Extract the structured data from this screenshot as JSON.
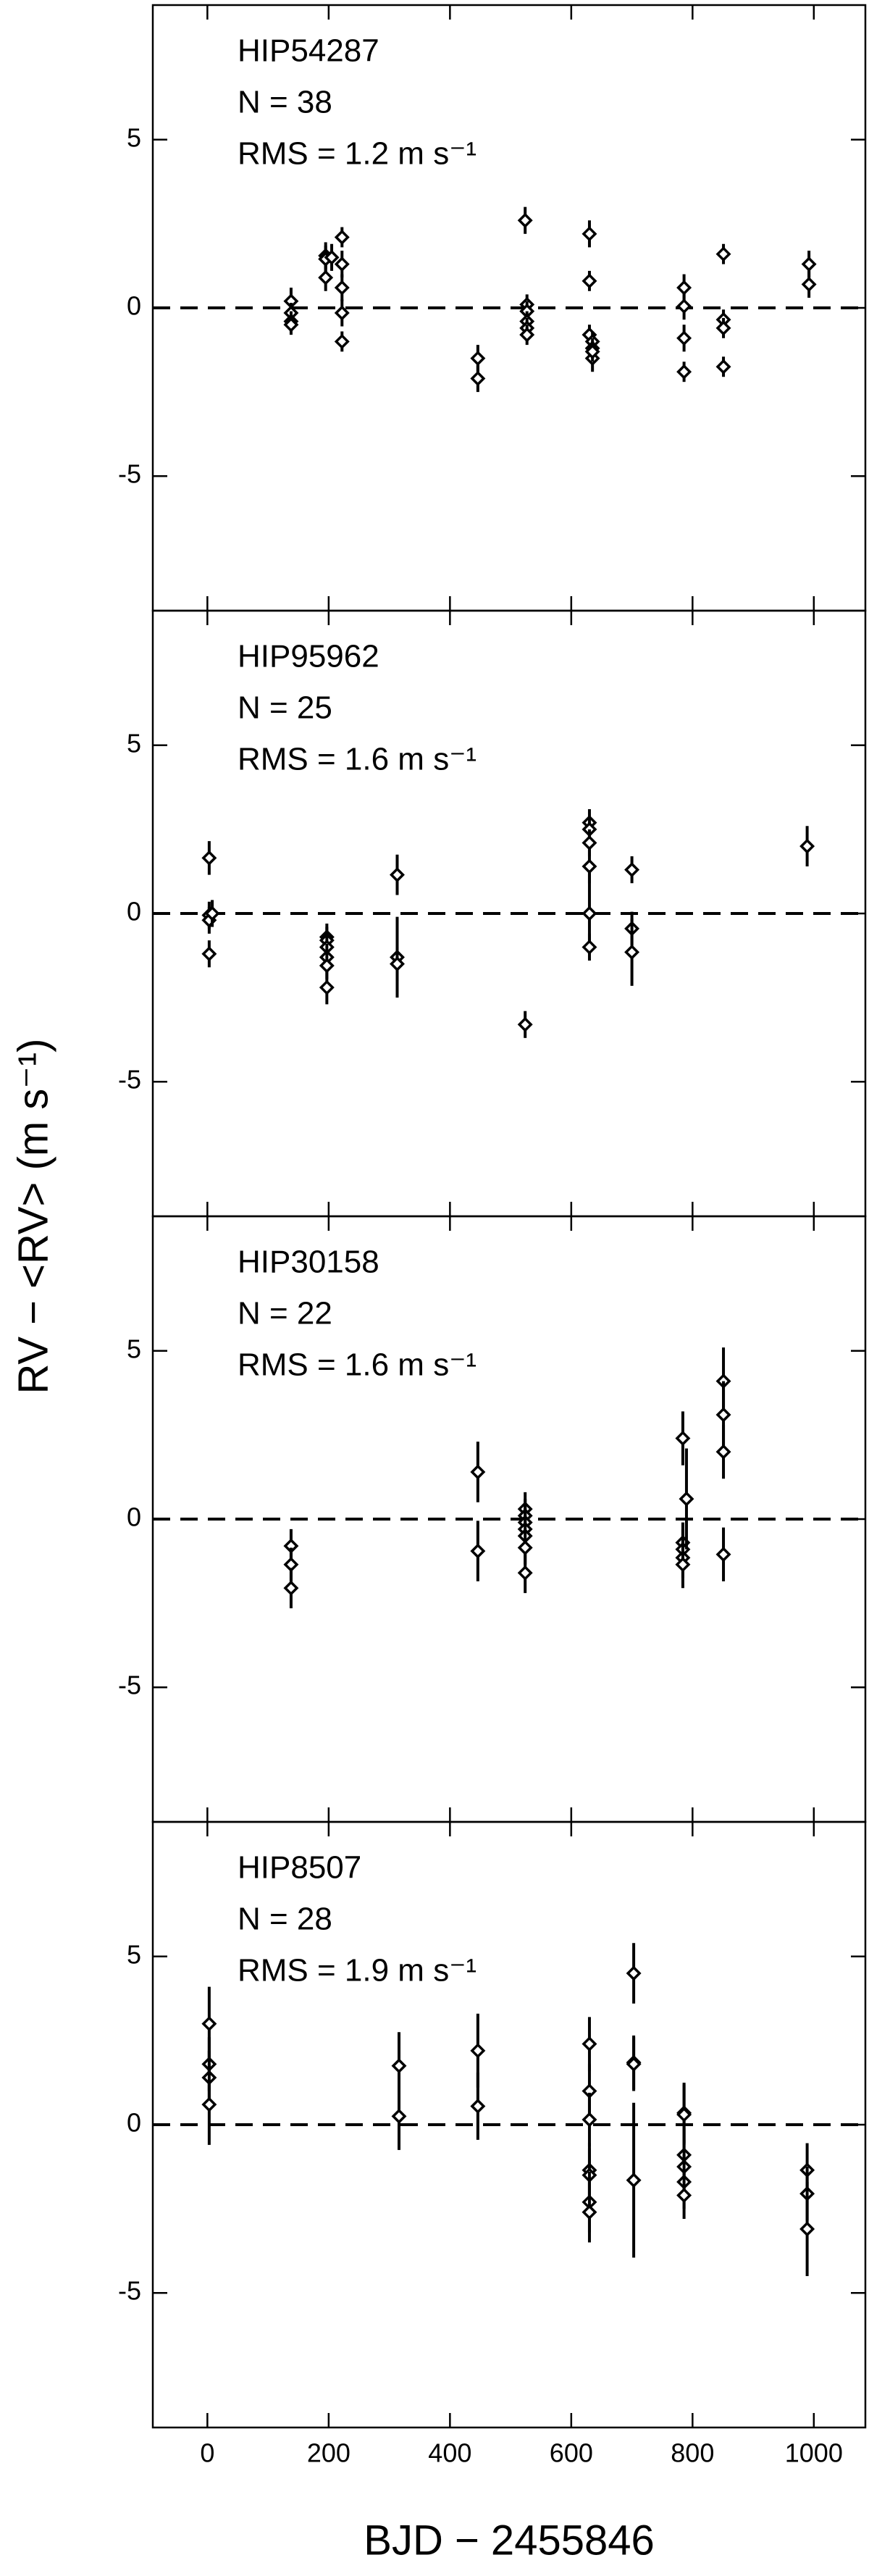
{
  "chart_data": [
    {
      "type": "scatter",
      "annotations": [
        "HIP54287",
        "N = 38",
        "RMS = 1.2 m s⁻¹"
      ],
      "ylabel": "RV − <RV> (m s⁻¹)",
      "x": [
        138,
        138,
        138,
        138,
        195,
        195,
        195,
        205,
        222,
        222,
        222,
        222,
        222,
        446,
        446,
        524,
        527,
        527,
        527,
        527,
        527,
        630,
        630,
        630,
        635,
        635,
        635,
        635,
        786,
        786,
        786,
        786,
        851,
        851,
        851,
        851,
        992,
        992
      ],
      "values": [
        0.2,
        -0.15,
        -0.4,
        -0.5,
        1.55,
        1.45,
        0.9,
        1.5,
        2.1,
        1.3,
        0.6,
        -0.15,
        -1.0,
        -1.5,
        -2.1,
        2.6,
        0.1,
        -0.1,
        -0.4,
        -0.6,
        -0.8,
        2.2,
        0.8,
        -0.8,
        -1.0,
        -1.2,
        -1.5,
        -1.3,
        0.6,
        0.05,
        -0.9,
        -1.9,
        1.6,
        -0.35,
        -0.6,
        -1.75,
        1.3,
        0.7
      ],
      "errors": [
        0.4,
        0.3,
        0.3,
        0.3,
        0.4,
        0.4,
        0.4,
        0.4,
        0.3,
        0.4,
        0.4,
        0.4,
        0.3,
        0.4,
        0.4,
        0.4,
        0.3,
        0.3,
        0.3,
        0.3,
        0.3,
        0.4,
        0.3,
        0.3,
        0.3,
        0.3,
        0.4,
        0.3,
        0.4,
        0.4,
        0.4,
        0.3,
        0.3,
        0.3,
        0.3,
        0.3,
        0.4,
        0.4
      ],
      "color": "#000000",
      "hline": 0,
      "xlim": [
        -90,
        1085
      ],
      "xticks": [
        0,
        200,
        400,
        600,
        800,
        1000
      ],
      "ylim": [
        -9,
        9
      ],
      "yticks": [
        -5,
        0,
        5
      ]
    },
    {
      "type": "scatter",
      "annotations": [
        "HIP95962",
        "N = 25",
        "RMS = 1.6 m s⁻¹"
      ],
      "x": [
        3,
        3,
        3,
        3,
        8,
        197,
        197,
        197,
        197,
        197,
        197,
        313,
        313,
        313,
        524,
        630,
        630,
        630,
        630,
        630,
        630,
        700,
        700,
        700,
        989
      ],
      "values": [
        1.65,
        -0.05,
        -0.2,
        -1.2,
        0.0,
        -0.7,
        -0.8,
        -1.0,
        -1.3,
        -1.55,
        -2.2,
        1.15,
        -1.3,
        -1.5,
        -3.3,
        2.7,
        2.5,
        2.1,
        1.4,
        0.0,
        -1.0,
        1.3,
        -0.45,
        -1.15,
        2.0
      ],
      "errors": [
        0.5,
        0.4,
        0.4,
        0.4,
        0.4,
        0.4,
        0.4,
        0.4,
        0.4,
        0.4,
        0.5,
        0.6,
        1.2,
        0.5,
        0.4,
        0.4,
        0.4,
        0.4,
        0.5,
        1.2,
        0.4,
        0.4,
        0.5,
        1.0,
        0.6
      ],
      "color": "#000000",
      "hline": 0,
      "xlim": [
        -90,
        1085
      ],
      "xticks": [
        0,
        200,
        400,
        600,
        800,
        1000
      ],
      "ylim": [
        -9,
        9
      ],
      "yticks": [
        -5,
        0,
        5
      ]
    },
    {
      "type": "scatter",
      "annotations": [
        "HIP30158",
        "N = 22",
        "RMS = 1.6 m s⁻¹"
      ],
      "x": [
        138,
        138,
        138,
        446,
        446,
        524,
        524,
        524,
        524,
        524,
        524,
        524,
        784,
        784,
        784,
        784,
        784,
        790,
        851,
        851,
        851,
        851
      ],
      "values": [
        -0.8,
        -1.35,
        -2.05,
        1.4,
        -0.95,
        0.3,
        0.1,
        -0.1,
        -0.3,
        -0.5,
        -0.85,
        -1.6,
        2.4,
        -0.7,
        -0.9,
        -1.15,
        -1.35,
        0.6,
        4.1,
        3.1,
        2.0,
        -1.05
      ],
      "errors": [
        0.5,
        0.5,
        0.6,
        0.9,
        0.9,
        0.5,
        0.5,
        0.5,
        0.5,
        0.5,
        0.5,
        0.6,
        0.8,
        0.6,
        0.6,
        0.6,
        0.7,
        1.5,
        1.0,
        1.0,
        0.8,
        0.8
      ],
      "color": "#000000",
      "hline": 0,
      "xlim": [
        -90,
        1085
      ],
      "xticks": [
        0,
        200,
        400,
        600,
        800,
        1000
      ],
      "ylim": [
        -9,
        9
      ],
      "yticks": [
        -5,
        0,
        5
      ]
    },
    {
      "type": "scatter",
      "annotations": [
        "HIP8507",
        "N = 28",
        "RMS = 1.9 m s⁻¹"
      ],
      "xlabel": "BJD − 2455846",
      "x": [
        3,
        3,
        3,
        3,
        316,
        316,
        446,
        446,
        630,
        630,
        630,
        630,
        630,
        630,
        630,
        703,
        703,
        703,
        703,
        786,
        786,
        786,
        786,
        786,
        786,
        989,
        989,
        989
      ],
      "values": [
        3.0,
        1.8,
        1.4,
        0.6,
        1.75,
        0.25,
        2.2,
        0.55,
        2.4,
        1.0,
        0.15,
        -1.35,
        -1.5,
        -2.3,
        -2.6,
        4.5,
        1.85,
        1.8,
        -1.65,
        0.35,
        0.3,
        -0.9,
        -1.25,
        -1.7,
        -2.1,
        -1.35,
        -2.05,
        -3.1
      ],
      "errors": [
        1.1,
        0.8,
        0.8,
        1.2,
        1.0,
        1.0,
        1.1,
        1.0,
        0.8,
        0.8,
        0.8,
        0.8,
        0.8,
        0.9,
        0.9,
        0.9,
        0.8,
        0.8,
        2.3,
        0.9,
        0.9,
        0.8,
        0.8,
        0.8,
        0.7,
        0.8,
        0.8,
        1.4
      ],
      "color": "#000000",
      "hline": 0,
      "xlim": [
        -90,
        1085
      ],
      "xticks": [
        0,
        200,
        400,
        600,
        800,
        1000
      ],
      "ylim": [
        -9,
        9
      ],
      "yticks": [
        -5,
        0,
        5
      ]
    }
  ]
}
